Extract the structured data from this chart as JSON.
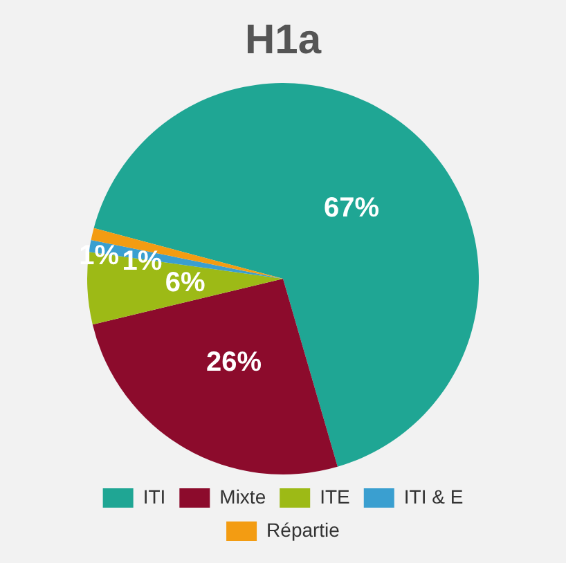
{
  "chart_data": {
    "type": "pie",
    "title": "H1a",
    "categories": [
      "ITI",
      "Mixte",
      "ITE",
      "ITI & E",
      "Répartie"
    ],
    "values": [
      67,
      26,
      6,
      1,
      1
    ],
    "colors": [
      "#1fa694",
      "#8c0b2c",
      "#9dba16",
      "#3a9fd0",
      "#f39c12"
    ],
    "value_labels": [
      "67%",
      "26%",
      "6%",
      "1%",
      "1%"
    ],
    "legend": "bottom"
  }
}
